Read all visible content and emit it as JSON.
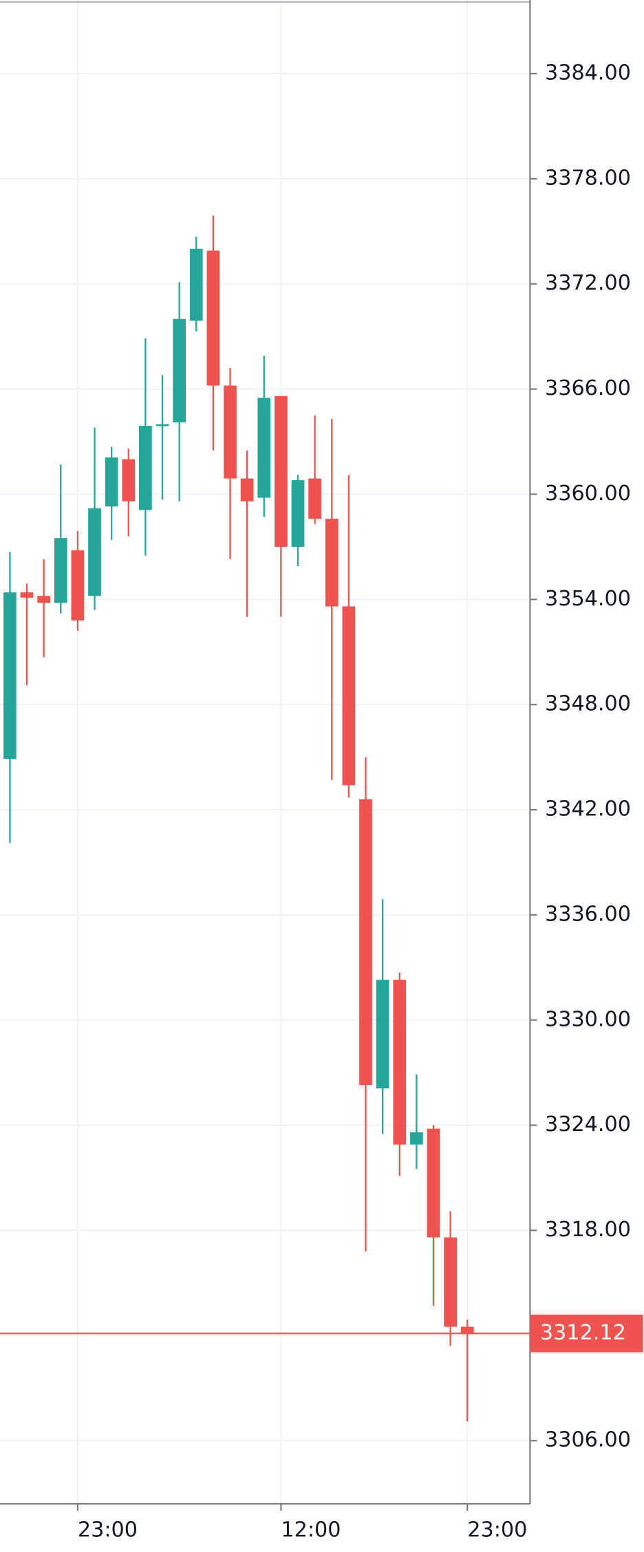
{
  "chart_data": {
    "type": "candlestick",
    "categories": [
      null,
      null,
      null,
      null,
      "23:00",
      null,
      null,
      null,
      null,
      null,
      null,
      null,
      null,
      null,
      null,
      null,
      "12:00",
      null,
      null,
      null,
      null,
      null,
      null,
      null,
      null,
      null,
      null,
      "23:00"
    ],
    "open": [
      3344.9,
      3354.4,
      3354.2,
      3353.8,
      3356.8,
      3354.2,
      3359.3,
      3362.0,
      3359.1,
      3363.9,
      3364.1,
      3369.9,
      3373.9,
      3366.2,
      3360.9,
      3359.8,
      3365.6,
      3357.0,
      3360.9,
      3358.6,
      3353.6,
      3342.6,
      3326.1,
      3332.3,
      3322.9,
      3323.8,
      3317.6,
      3312.5
    ],
    "high": [
      3356.7,
      3354.9,
      3356.3,
      3361.7,
      3357.9,
      3363.8,
      3362.7,
      3362.6,
      3368.9,
      3366.8,
      3372.1,
      3374.7,
      3375.9,
      3367.2,
      3362.5,
      3367.9,
      3365.6,
      3361.1,
      3364.5,
      3364.3,
      3361.1,
      3345.0,
      3336.9,
      3332.7,
      3326.9,
      3324.0,
      3319.1,
      3312.9
    ],
    "low": [
      3340.1,
      3349.1,
      3350.7,
      3353.2,
      3352.2,
      3353.4,
      3357.4,
      3357.6,
      3356.5,
      3359.7,
      3359.6,
      3369.3,
      3362.5,
      3356.3,
      3353.0,
      3358.7,
      3353.0,
      3355.9,
      3358.3,
      3343.7,
      3342.7,
      3316.8,
      3323.5,
      3321.1,
      3321.5,
      3313.7,
      3311.4,
      3307.1
    ],
    "close": [
      3354.4,
      3354.1,
      3353.8,
      3357.5,
      3352.8,
      3359.2,
      3362.1,
      3359.6,
      3363.9,
      3364.0,
      3370.0,
      3374.0,
      3366.2,
      3360.9,
      3359.6,
      3365.5,
      3357.0,
      3360.8,
      3358.6,
      3353.6,
      3343.4,
      3326.3,
      3332.3,
      3322.9,
      3323.6,
      3317.6,
      3312.5,
      3312.12
    ],
    "up_color": "#26a69a",
    "down_color": "#ef5350",
    "current_price": {
      "value": 3312.12,
      "label": "3312.12"
    },
    "ylim": [
      3302.4,
      3388.2
    ],
    "yticks": [
      {
        "value": 3306,
        "label": "3306.00"
      },
      {
        "value": 3312,
        "label": "3312.00"
      },
      {
        "value": 3318,
        "label": "3318.00"
      },
      {
        "value": 3324,
        "label": "3324.00"
      },
      {
        "value": 3330,
        "label": "3330.00"
      },
      {
        "value": 3336,
        "label": "3336.00"
      },
      {
        "value": 3342,
        "label": "3342.00"
      },
      {
        "value": 3348,
        "label": "3348.00"
      },
      {
        "value": 3354,
        "label": "3354.00"
      },
      {
        "value": 3360,
        "label": "3360.00"
      },
      {
        "value": 3366,
        "label": "3366.00"
      },
      {
        "value": 3372,
        "label": "3372.00"
      },
      {
        "value": 3378,
        "label": "3378.00"
      },
      {
        "value": 3384,
        "label": "3384.00"
      }
    ],
    "grid": true
  }
}
